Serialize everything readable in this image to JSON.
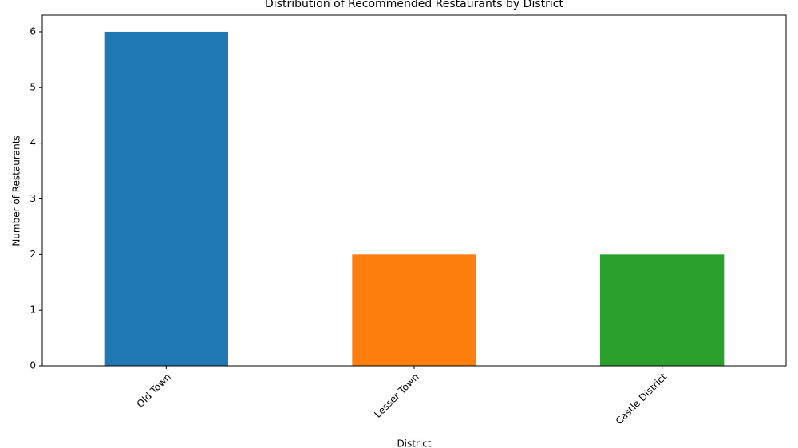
{
  "chart_data": {
    "type": "bar",
    "title": "Distribution of Recommended Restaurants by District",
    "x_label": "District",
    "y_label": "Number of Restaurants",
    "categories": [
      "Old Town",
      "Lesser Town",
      "Castle District"
    ],
    "values": [
      6,
      2,
      2
    ],
    "colors": [
      "#1f77b4",
      "#ff7f0e",
      "#2ca02c"
    ],
    "ylim": [
      0,
      6.3
    ],
    "yticks": [
      0,
      1,
      2,
      3,
      4,
      5,
      6
    ]
  }
}
